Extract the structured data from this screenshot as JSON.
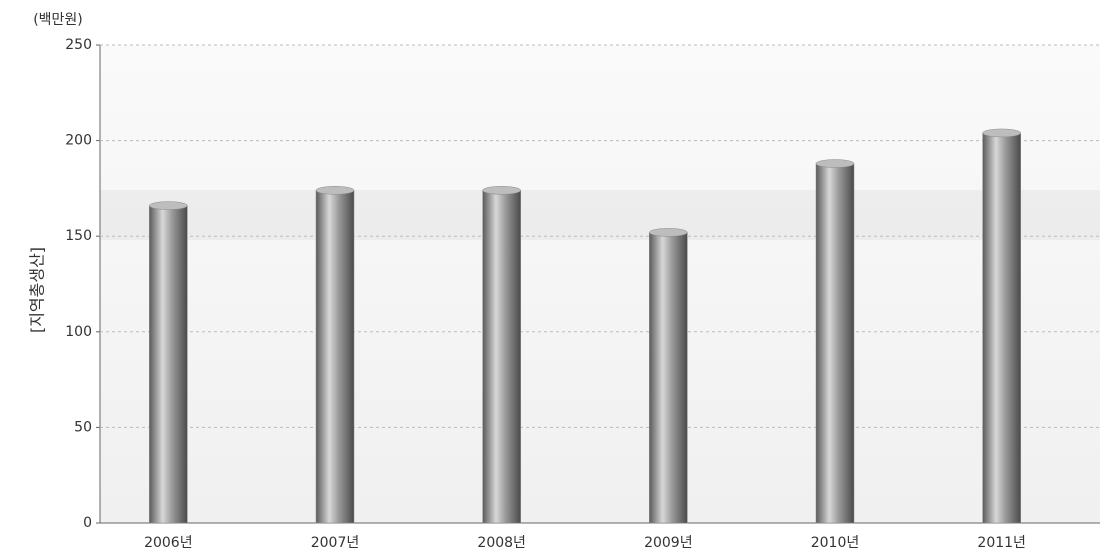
{
  "chart_data": {
    "type": "bar",
    "unit_label": "(백만원)",
    "y_label": "[지역총생산]",
    "categories": [
      "2006년",
      "2007년",
      "2008년",
      "2009년",
      "2010년",
      "2011년"
    ],
    "values": [
      166,
      174,
      174,
      152,
      188,
      204
    ],
    "color": "#8a8a8a",
    "ylim": [
      0,
      250
    ],
    "yticks": [
      0,
      50,
      100,
      150,
      200,
      250
    ],
    "grid": true
  }
}
